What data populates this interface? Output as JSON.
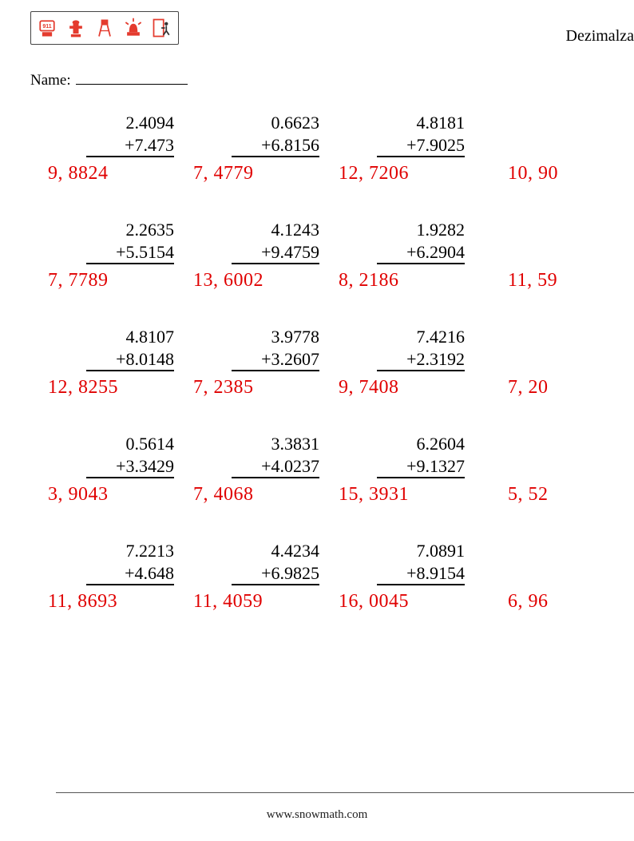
{
  "header": {
    "title_right": "Dezimalza",
    "icons": [
      "call-911-icon",
      "fire-hydrant-icon",
      "watchtower-icon",
      "alarm-light-icon",
      "emergency-exit-icon"
    ]
  },
  "name_label": "Name:",
  "footer": "www.snowmath.com",
  "colors": {
    "answer": "#e00000",
    "text": "#000000",
    "icon_red": "#e43b2e",
    "icon_border": "#333333"
  },
  "fonts": {
    "problem_fontsize_pt": 17,
    "answer_fontsize_pt": 18
  },
  "problems": [
    [
      {
        "a": "2.4094",
        "b": "+7.473",
        "ans": "9, 8824"
      },
      {
        "a": "0.6623",
        "b": "+6.8156",
        "ans": "7, 4779"
      },
      {
        "a": "4.8181",
        "b": "+7.9025",
        "ans": "12, 7206"
      },
      {
        "a": "",
        "b": "",
        "ans": "10, 90",
        "cut": true
      }
    ],
    [
      {
        "a": "2.2635",
        "b": "+5.5154",
        "ans": "7, 7789"
      },
      {
        "a": "4.1243",
        "b": "+9.4759",
        "ans": "13, 6002"
      },
      {
        "a": "1.9282",
        "b": "+6.2904",
        "ans": "8, 2186"
      },
      {
        "a": "",
        "b": "",
        "ans": "11, 59",
        "cut": true
      }
    ],
    [
      {
        "a": "4.8107",
        "b": "+8.0148",
        "ans": "12, 8255"
      },
      {
        "a": "3.9778",
        "b": "+3.2607",
        "ans": "7, 2385"
      },
      {
        "a": "7.4216",
        "b": "+2.3192",
        "ans": "9, 7408"
      },
      {
        "a": "",
        "b": "",
        "ans": "7, 20",
        "cut": true
      }
    ],
    [
      {
        "a": "0.5614",
        "b": "+3.3429",
        "ans": "3, 9043"
      },
      {
        "a": "3.3831",
        "b": "+4.0237",
        "ans": "7, 4068"
      },
      {
        "a": "6.2604",
        "b": "+9.1327",
        "ans": "15, 3931"
      },
      {
        "a": "",
        "b": "",
        "ans": "5, 52",
        "cut": true
      }
    ],
    [
      {
        "a": "7.2213",
        "b": "+4.648",
        "ans": "11, 8693"
      },
      {
        "a": "4.4234",
        "b": "+6.9825",
        "ans": "11, 4059"
      },
      {
        "a": "7.0891",
        "b": "+8.9154",
        "ans": "16, 0045"
      },
      {
        "a": "",
        "b": "",
        "ans": "6, 96",
        "cut": true
      }
    ]
  ]
}
